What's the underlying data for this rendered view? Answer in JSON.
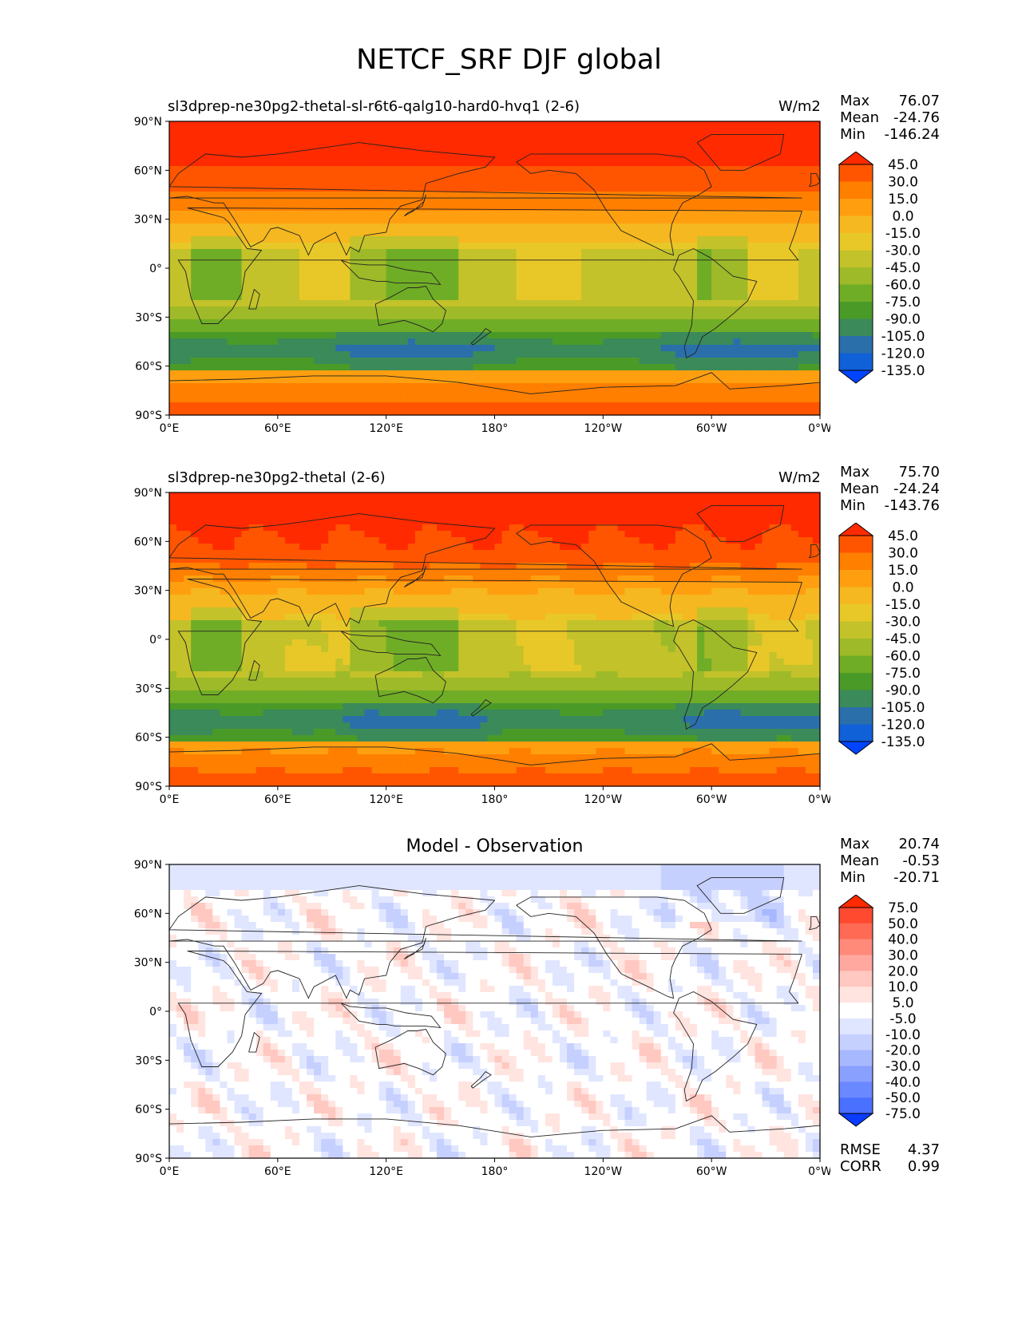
{
  "figure": {
    "suptitle": "NETCF_SRF DJF global"
  },
  "chart_data": [
    {
      "type": "heatmap",
      "panel": "test",
      "title": "sl3dprep-ne30pg2-thetal-sl-r6t6-qalg10-hard0-hvq1 (2-6)",
      "units": "W/m2",
      "stats": {
        "max_label": "Max",
        "max": "76.07",
        "mean_label": "Mean",
        "mean": "-24.76",
        "min_label": "Min",
        "min": "-146.24"
      },
      "x_ticks": [
        "0°E",
        "60°E",
        "120°E",
        "180°",
        "120°W",
        "60°W",
        "0°W"
      ],
      "y_ticks": [
        "90°N",
        "60°N",
        "30°N",
        "0°",
        "30°S",
        "60°S",
        "90°S"
      ],
      "xlim": [
        0,
        360
      ],
      "ylim": [
        -90,
        90
      ],
      "colorbar_levels": [
        "45.0",
        "30.0",
        "15.0",
        "0.0",
        "-15.0",
        "-30.0",
        "-45.0",
        "-60.0",
        "-75.0",
        "-90.0",
        "-105.0",
        "-120.0",
        "-135.0"
      ],
      "colors": [
        "#ff2a00",
        "#ff5500",
        "#ff7f00",
        "#ff9f10",
        "#f5b820",
        "#e8c828",
        "#c3c22a",
        "#9eba28",
        "#70ad26",
        "#4a9a28",
        "#3a8a5a",
        "#2a6faa",
        "#1060d8",
        "#0044ff"
      ]
    },
    {
      "type": "heatmap",
      "panel": "reference",
      "title": "sl3dprep-ne30pg2-thetal (2-6)",
      "units": "W/m2",
      "stats": {
        "max_label": "Max",
        "max": "75.70",
        "mean_label": "Mean",
        "mean": "-24.24",
        "min_label": "Min",
        "min": "-143.76"
      },
      "x_ticks": [
        "0°E",
        "60°E",
        "120°E",
        "180°",
        "120°W",
        "60°W",
        "0°W"
      ],
      "y_ticks": [
        "90°N",
        "60°N",
        "30°N",
        "0°",
        "30°S",
        "60°S",
        "90°S"
      ],
      "xlim": [
        0,
        360
      ],
      "ylim": [
        -90,
        90
      ],
      "colorbar_levels": [
        "45.0",
        "30.0",
        "15.0",
        "0.0",
        "-15.0",
        "-30.0",
        "-45.0",
        "-60.0",
        "-75.0",
        "-90.0",
        "-105.0",
        "-120.0",
        "-135.0"
      ],
      "colors": [
        "#ff2a00",
        "#ff5500",
        "#ff7f00",
        "#ff9f10",
        "#f5b820",
        "#e8c828",
        "#c3c22a",
        "#9eba28",
        "#70ad26",
        "#4a9a28",
        "#3a8a5a",
        "#2a6faa",
        "#1060d8",
        "#0044ff"
      ]
    },
    {
      "type": "heatmap",
      "panel": "difference",
      "title": "Model - Observation",
      "units": "",
      "stats": {
        "max_label": "Max",
        "max": "20.74",
        "mean_label": "Mean",
        "mean": "-0.53",
        "min_label": "Min",
        "min": "-20.71"
      },
      "metrics": {
        "rmse_label": "RMSE",
        "rmse": "4.37",
        "corr_label": "CORR",
        "corr": "0.99"
      },
      "x_ticks": [
        "0°E",
        "60°E",
        "120°E",
        "180°",
        "120°W",
        "60°W",
        "0°W"
      ],
      "y_ticks": [
        "90°N",
        "60°N",
        "30°N",
        "0°",
        "30°S",
        "60°S",
        "90°S"
      ],
      "xlim": [
        0,
        360
      ],
      "ylim": [
        -90,
        90
      ],
      "colorbar_levels": [
        "75.0",
        "50.0",
        "40.0",
        "30.0",
        "20.0",
        "10.0",
        "5.0",
        "-5.0",
        "-10.0",
        "-20.0",
        "-30.0",
        "-40.0",
        "-50.0",
        "-75.0"
      ],
      "colors": [
        "#ff2a00",
        "#ff4a30",
        "#ff6a55",
        "#ff8a7a",
        "#ffa8a0",
        "#ffc8c0",
        "#ffe4e0",
        "#ffffff",
        "#e0e6ff",
        "#c6d0ff",
        "#a8b8ff",
        "#8aa0ff",
        "#6a88ff",
        "#4a70ff",
        "#0a3cff"
      ]
    }
  ]
}
